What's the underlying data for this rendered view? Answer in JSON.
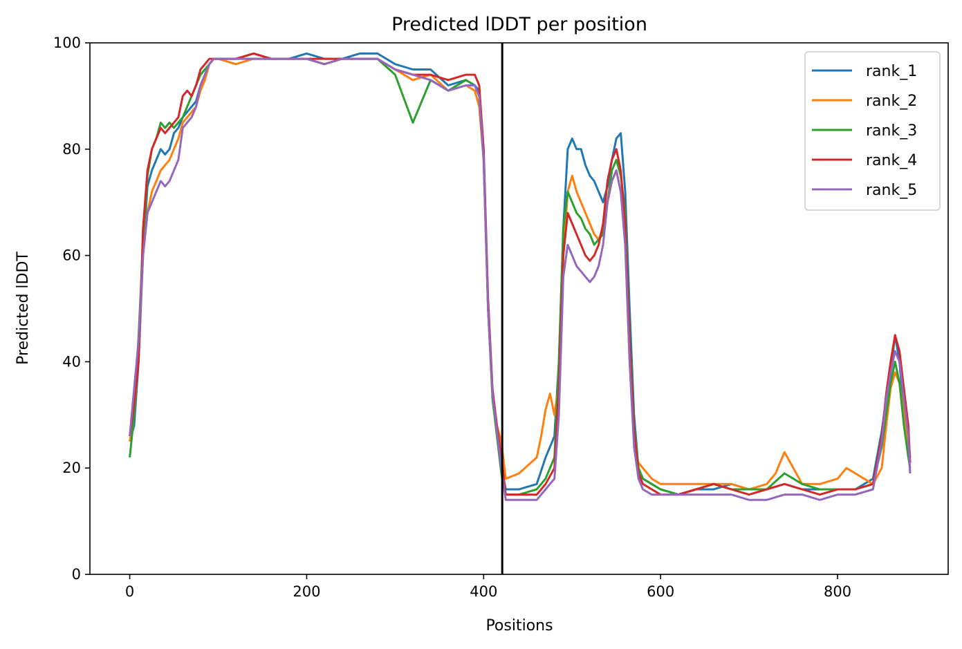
{
  "chart_data": {
    "type": "line",
    "title": "Predicted lDDT per position",
    "xlabel": "Positions",
    "ylabel": "Predicted lDDT",
    "xlim": [
      -45,
      925
    ],
    "ylim": [
      0,
      100
    ],
    "xticks": [
      0,
      200,
      400,
      600,
      800
    ],
    "yticks": [
      0,
      20,
      40,
      60,
      80,
      100
    ],
    "xtick_labels": [
      "0",
      "200",
      "400",
      "600",
      "800"
    ],
    "ytick_labels": [
      "0",
      "20",
      "40",
      "60",
      "80",
      "100"
    ],
    "legend_position": "top-right",
    "grid": false,
    "vertical_line_at": 421,
    "series": [
      {
        "name": "rank_1",
        "color": "#1f77b4",
        "x": [
          0,
          5,
          10,
          15,
          20,
          25,
          30,
          35,
          40,
          45,
          50,
          55,
          60,
          65,
          70,
          75,
          80,
          85,
          90,
          95,
          100,
          120,
          140,
          160,
          180,
          200,
          220,
          240,
          260,
          280,
          300,
          320,
          340,
          360,
          380,
          390,
          395,
          400,
          405,
          410,
          415,
          420,
          425,
          440,
          460,
          470,
          480,
          485,
          490,
          495,
          500,
          505,
          510,
          515,
          520,
          525,
          530,
          535,
          540,
          545,
          550,
          555,
          560,
          565,
          570,
          575,
          580,
          590,
          600,
          620,
          640,
          660,
          680,
          700,
          720,
          740,
          760,
          780,
          800,
          820,
          840,
          850,
          855,
          860,
          865,
          870,
          875,
          880,
          882
        ],
        "y": [
          25,
          28,
          40,
          60,
          73,
          76,
          78,
          80,
          79,
          80,
          83,
          84,
          86,
          87,
          88,
          89,
          92,
          94,
          96,
          97,
          97,
          97,
          98,
          97,
          97,
          98,
          97,
          97,
          98,
          98,
          96,
          95,
          95,
          92,
          93,
          92,
          91,
          80,
          50,
          34,
          27,
          20,
          16,
          16,
          17,
          22,
          26,
          40,
          65,
          80,
          82,
          80,
          80,
          77,
          75,
          74,
          72,
          70,
          73,
          78,
          82,
          83,
          72,
          50,
          30,
          20,
          18,
          17,
          16,
          15,
          16,
          16,
          17,
          16,
          16,
          17,
          16,
          16,
          16,
          16,
          18,
          27,
          33,
          38,
          45,
          40,
          30,
          25,
          22
        ]
      },
      {
        "name": "rank_2",
        "color": "#ff7f0e",
        "x": [
          0,
          5,
          10,
          15,
          20,
          25,
          30,
          35,
          40,
          45,
          50,
          55,
          60,
          65,
          70,
          75,
          80,
          85,
          90,
          95,
          100,
          120,
          140,
          160,
          180,
          200,
          220,
          240,
          260,
          280,
          300,
          320,
          340,
          360,
          380,
          390,
          395,
          400,
          405,
          410,
          415,
          420,
          425,
          440,
          460,
          465,
          470,
          475,
          480,
          485,
          490,
          495,
          500,
          505,
          510,
          515,
          520,
          525,
          530,
          535,
          540,
          545,
          550,
          555,
          560,
          565,
          570,
          575,
          580,
          590,
          600,
          620,
          640,
          660,
          680,
          700,
          720,
          730,
          740,
          750,
          760,
          780,
          800,
          810,
          820,
          840,
          850,
          855,
          860,
          865,
          870,
          875,
          880,
          882
        ],
        "y": [
          25,
          30,
          42,
          60,
          68,
          72,
          74,
          76,
          77,
          78,
          80,
          82,
          85,
          86,
          87,
          88,
          91,
          93,
          96,
          97,
          97,
          96,
          97,
          97,
          97,
          97,
          96,
          97,
          97,
          97,
          95,
          93,
          94,
          91,
          92,
          91,
          88,
          78,
          50,
          34,
          28,
          25,
          18,
          19,
          22,
          26,
          31,
          34,
          30,
          36,
          60,
          72,
          75,
          72,
          70,
          68,
          66,
          64,
          63,
          65,
          70,
          74,
          76,
          72,
          62,
          40,
          25,
          21,
          20,
          18,
          17,
          17,
          17,
          17,
          17,
          16,
          17,
          19,
          23,
          20,
          17,
          17,
          18,
          20,
          19,
          17,
          20,
          28,
          35,
          38,
          36,
          30,
          24,
          19
        ]
      },
      {
        "name": "rank_3",
        "color": "#2ca02c",
        "x": [
          0,
          5,
          10,
          15,
          20,
          25,
          30,
          35,
          40,
          45,
          50,
          55,
          60,
          65,
          70,
          75,
          80,
          85,
          90,
          95,
          100,
          120,
          140,
          160,
          180,
          200,
          220,
          240,
          260,
          280,
          300,
          320,
          340,
          360,
          380,
          390,
          395,
          400,
          405,
          410,
          415,
          420,
          425,
          440,
          460,
          470,
          480,
          485,
          490,
          495,
          500,
          505,
          510,
          515,
          520,
          525,
          530,
          535,
          540,
          545,
          550,
          555,
          560,
          565,
          570,
          575,
          580,
          590,
          600,
          620,
          640,
          660,
          680,
          700,
          720,
          740,
          760,
          780,
          800,
          820,
          840,
          850,
          855,
          860,
          865,
          870,
          875,
          880,
          882
        ],
        "y": [
          22,
          30,
          45,
          62,
          75,
          80,
          82,
          85,
          84,
          85,
          84,
          85,
          86,
          88,
          90,
          92,
          94,
          95,
          96,
          97,
          97,
          97,
          97,
          97,
          97,
          97,
          96,
          97,
          97,
          97,
          94,
          85,
          93,
          91,
          93,
          92,
          90,
          78,
          50,
          33,
          26,
          19,
          15,
          15,
          16,
          18,
          22,
          40,
          65,
          72,
          70,
          68,
          67,
          65,
          64,
          62,
          63,
          64,
          70,
          76,
          78,
          75,
          68,
          45,
          28,
          20,
          18,
          17,
          16,
          15,
          16,
          17,
          16,
          16,
          16,
          19,
          17,
          16,
          16,
          16,
          17,
          24,
          30,
          36,
          40,
          36,
          28,
          22,
          20
        ]
      },
      {
        "name": "rank_4",
        "color": "#d62728",
        "x": [
          0,
          5,
          10,
          15,
          20,
          25,
          30,
          35,
          40,
          45,
          50,
          55,
          60,
          65,
          70,
          75,
          80,
          85,
          90,
          95,
          100,
          120,
          140,
          160,
          180,
          200,
          220,
          240,
          260,
          280,
          300,
          320,
          340,
          360,
          380,
          390,
          395,
          400,
          405,
          410,
          415,
          420,
          425,
          440,
          460,
          470,
          480,
          485,
          490,
          495,
          500,
          505,
          510,
          515,
          520,
          525,
          530,
          535,
          540,
          545,
          550,
          555,
          560,
          565,
          570,
          575,
          580,
          590,
          600,
          620,
          640,
          660,
          680,
          700,
          720,
          740,
          760,
          780,
          800,
          820,
          840,
          850,
          855,
          860,
          865,
          870,
          875,
          880,
          882
        ],
        "y": [
          26,
          32,
          40,
          65,
          76,
          80,
          82,
          84,
          83,
          84,
          85,
          86,
          90,
          91,
          90,
          92,
          95,
          96,
          97,
          97,
          97,
          97,
          98,
          97,
          97,
          97,
          97,
          97,
          97,
          97,
          95,
          94,
          94,
          93,
          94,
          94,
          92,
          80,
          52,
          35,
          28,
          22,
          15,
          15,
          15,
          17,
          20,
          35,
          60,
          68,
          66,
          64,
          62,
          60,
          59,
          60,
          62,
          66,
          74,
          78,
          80,
          76,
          66,
          44,
          27,
          19,
          17,
          16,
          15,
          15,
          16,
          17,
          16,
          15,
          16,
          17,
          16,
          15,
          16,
          16,
          17,
          26,
          34,
          40,
          45,
          42,
          35,
          28,
          21
        ]
      },
      {
        "name": "rank_5",
        "color": "#9467bd",
        "x": [
          0,
          5,
          10,
          15,
          20,
          25,
          30,
          35,
          40,
          45,
          50,
          55,
          60,
          65,
          70,
          75,
          80,
          85,
          90,
          95,
          100,
          120,
          140,
          160,
          180,
          200,
          220,
          240,
          260,
          280,
          300,
          320,
          340,
          360,
          380,
          390,
          395,
          400,
          405,
          410,
          415,
          420,
          425,
          440,
          460,
          470,
          480,
          485,
          490,
          495,
          500,
          505,
          510,
          515,
          520,
          525,
          530,
          535,
          540,
          545,
          550,
          555,
          560,
          565,
          570,
          575,
          580,
          590,
          600,
          620,
          640,
          660,
          680,
          700,
          720,
          740,
          760,
          780,
          800,
          820,
          840,
          850,
          855,
          860,
          865,
          870,
          875,
          880,
          882
        ],
        "y": [
          26,
          35,
          44,
          60,
          68,
          70,
          72,
          74,
          73,
          74,
          76,
          78,
          84,
          85,
          86,
          88,
          92,
          94,
          96,
          97,
          97,
          97,
          97,
          97,
          97,
          97,
          96,
          97,
          97,
          97,
          95,
          94,
          93,
          91,
          92,
          92,
          90,
          78,
          50,
          34,
          27,
          20,
          14,
          14,
          14,
          16,
          18,
          30,
          56,
          62,
          60,
          58,
          57,
          56,
          55,
          56,
          58,
          62,
          70,
          74,
          76,
          72,
          62,
          40,
          24,
          18,
          16,
          15,
          15,
          15,
          15,
          15,
          15,
          14,
          14,
          15,
          15,
          14,
          15,
          15,
          16,
          25,
          33,
          38,
          42,
          40,
          33,
          26,
          19
        ]
      }
    ]
  }
}
